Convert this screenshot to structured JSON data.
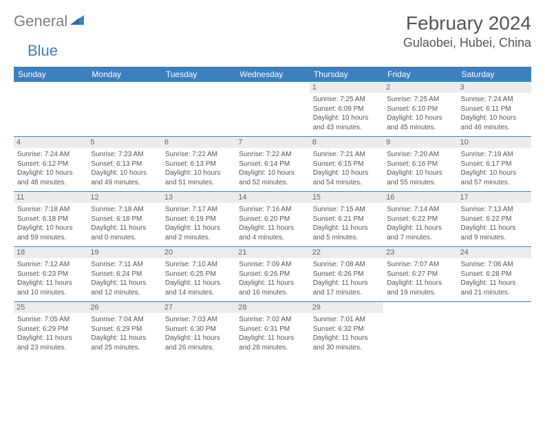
{
  "logo": {
    "general": "General",
    "blue": "Blue"
  },
  "title": "February 2024",
  "location": "Gulaobei, Hubei, China",
  "colors": {
    "header_bg": "#3c80c0",
    "header_text": "#ffffff",
    "daynum_bg": "#ececec",
    "border": "#3c80c0",
    "text": "#555555",
    "logo_grey": "#808080",
    "logo_blue": "#3c80c0"
  },
  "weekdays": [
    "Sunday",
    "Monday",
    "Tuesday",
    "Wednesday",
    "Thursday",
    "Friday",
    "Saturday"
  ],
  "weeks": [
    [
      null,
      null,
      null,
      null,
      {
        "n": "1",
        "sr": "7:25 AM",
        "ss": "6:09 PM",
        "dl": "10 hours and 43 minutes."
      },
      {
        "n": "2",
        "sr": "7:25 AM",
        "ss": "6:10 PM",
        "dl": "10 hours and 45 minutes."
      },
      {
        "n": "3",
        "sr": "7:24 AM",
        "ss": "6:11 PM",
        "dl": "10 hours and 46 minutes."
      }
    ],
    [
      {
        "n": "4",
        "sr": "7:24 AM",
        "ss": "6:12 PM",
        "dl": "10 hours and 48 minutes."
      },
      {
        "n": "5",
        "sr": "7:23 AM",
        "ss": "6:13 PM",
        "dl": "10 hours and 49 minutes."
      },
      {
        "n": "6",
        "sr": "7:22 AM",
        "ss": "6:13 PM",
        "dl": "10 hours and 51 minutes."
      },
      {
        "n": "7",
        "sr": "7:22 AM",
        "ss": "6:14 PM",
        "dl": "10 hours and 52 minutes."
      },
      {
        "n": "8",
        "sr": "7:21 AM",
        "ss": "6:15 PM",
        "dl": "10 hours and 54 minutes."
      },
      {
        "n": "9",
        "sr": "7:20 AM",
        "ss": "6:16 PM",
        "dl": "10 hours and 55 minutes."
      },
      {
        "n": "10",
        "sr": "7:19 AM",
        "ss": "6:17 PM",
        "dl": "10 hours and 57 minutes."
      }
    ],
    [
      {
        "n": "11",
        "sr": "7:18 AM",
        "ss": "6:18 PM",
        "dl": "10 hours and 59 minutes."
      },
      {
        "n": "12",
        "sr": "7:18 AM",
        "ss": "6:18 PM",
        "dl": "11 hours and 0 minutes."
      },
      {
        "n": "13",
        "sr": "7:17 AM",
        "ss": "6:19 PM",
        "dl": "11 hours and 2 minutes."
      },
      {
        "n": "14",
        "sr": "7:16 AM",
        "ss": "6:20 PM",
        "dl": "11 hours and 4 minutes."
      },
      {
        "n": "15",
        "sr": "7:15 AM",
        "ss": "6:21 PM",
        "dl": "11 hours and 5 minutes."
      },
      {
        "n": "16",
        "sr": "7:14 AM",
        "ss": "6:22 PM",
        "dl": "11 hours and 7 minutes."
      },
      {
        "n": "17",
        "sr": "7:13 AM",
        "ss": "6:22 PM",
        "dl": "11 hours and 9 minutes."
      }
    ],
    [
      {
        "n": "18",
        "sr": "7:12 AM",
        "ss": "6:23 PM",
        "dl": "11 hours and 10 minutes."
      },
      {
        "n": "19",
        "sr": "7:11 AM",
        "ss": "6:24 PM",
        "dl": "11 hours and 12 minutes."
      },
      {
        "n": "20",
        "sr": "7:10 AM",
        "ss": "6:25 PM",
        "dl": "11 hours and 14 minutes."
      },
      {
        "n": "21",
        "sr": "7:09 AM",
        "ss": "6:26 PM",
        "dl": "11 hours and 16 minutes."
      },
      {
        "n": "22",
        "sr": "7:08 AM",
        "ss": "6:26 PM",
        "dl": "11 hours and 17 minutes."
      },
      {
        "n": "23",
        "sr": "7:07 AM",
        "ss": "6:27 PM",
        "dl": "11 hours and 19 minutes."
      },
      {
        "n": "24",
        "sr": "7:06 AM",
        "ss": "6:28 PM",
        "dl": "11 hours and 21 minutes."
      }
    ],
    [
      {
        "n": "25",
        "sr": "7:05 AM",
        "ss": "6:29 PM",
        "dl": "11 hours and 23 minutes."
      },
      {
        "n": "26",
        "sr": "7:04 AM",
        "ss": "6:29 PM",
        "dl": "11 hours and 25 minutes."
      },
      {
        "n": "27",
        "sr": "7:03 AM",
        "ss": "6:30 PM",
        "dl": "11 hours and 26 minutes."
      },
      {
        "n": "28",
        "sr": "7:02 AM",
        "ss": "6:31 PM",
        "dl": "11 hours and 28 minutes."
      },
      {
        "n": "29",
        "sr": "7:01 AM",
        "ss": "6:32 PM",
        "dl": "11 hours and 30 minutes."
      },
      null,
      null
    ]
  ],
  "labels": {
    "sunrise": "Sunrise:",
    "sunset": "Sunset:",
    "daylight": "Daylight:"
  }
}
